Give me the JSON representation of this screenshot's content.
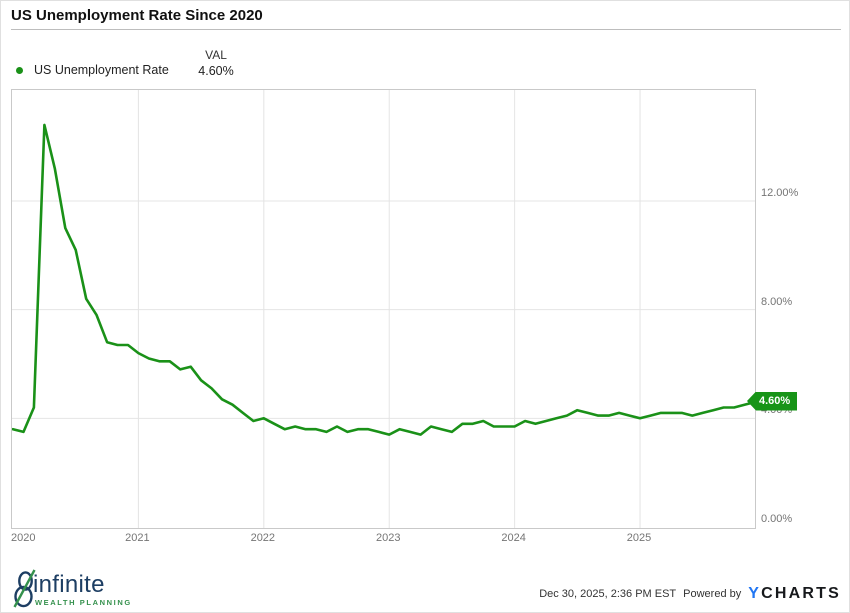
{
  "title": "US Unemployment Rate Since 2020",
  "legend": {
    "value_header": "VAL",
    "series_label": "US Unemployment Rate",
    "series_value": "4.60%"
  },
  "chart_data": {
    "type": "line",
    "title": "US Unemployment Rate Since 2020",
    "x_start": "2020-01",
    "x_end": "2025-12",
    "x_tick_labels": [
      "2020",
      "2021",
      "2022",
      "2023",
      "2024",
      "2025"
    ],
    "y_ticks": [
      12,
      8,
      4,
      0
    ],
    "y_tick_labels": [
      "12.00%",
      "8.00%",
      "4.00%",
      "0.00%"
    ],
    "y_gridline_values": [
      4,
      8,
      12
    ],
    "ylim": [
      0,
      16.1
    ],
    "grid": true,
    "legend_position": "top-left",
    "series": [
      {
        "name": "US Unemployment Rate",
        "unit": "%",
        "monthly_values": [
          3.6,
          3.5,
          4.4,
          14.8,
          13.2,
          11.0,
          10.2,
          8.4,
          7.8,
          6.8,
          6.7,
          6.7,
          6.4,
          6.2,
          6.1,
          6.1,
          5.8,
          5.9,
          5.4,
          5.1,
          4.7,
          4.5,
          4.2,
          3.9,
          4.0,
          3.8,
          3.6,
          3.7,
          3.6,
          3.6,
          3.5,
          3.7,
          3.5,
          3.6,
          3.6,
          3.5,
          3.4,
          3.6,
          3.5,
          3.4,
          3.7,
          3.6,
          3.5,
          3.8,
          3.8,
          3.9,
          3.7,
          3.7,
          3.7,
          3.9,
          3.8,
          3.9,
          4.0,
          4.1,
          4.3,
          4.2,
          4.1,
          4.1,
          4.2,
          4.1,
          4.0,
          4.1,
          4.2,
          4.2,
          4.2,
          4.1,
          4.2,
          4.3,
          4.4,
          4.4,
          4.5,
          4.6
        ]
      }
    ],
    "last_value_label": "4.60%"
  },
  "colors": {
    "line_green": "#1a9118",
    "badge_green": "#179417",
    "gridline": "#e4e4e4",
    "logo_navy": "#1d3e63",
    "logo_green": "#35914d",
    "ycharts_blue": "#2176f3"
  },
  "footer": {
    "logo_word": "infinite",
    "logo_tagline": "WEALTH PLANNING",
    "timestamp": "Dec 30, 2025, 2:36 PM EST",
    "powered_by": "Powered by",
    "ycharts_y": "Y",
    "ycharts_rest": "CHARTS"
  }
}
